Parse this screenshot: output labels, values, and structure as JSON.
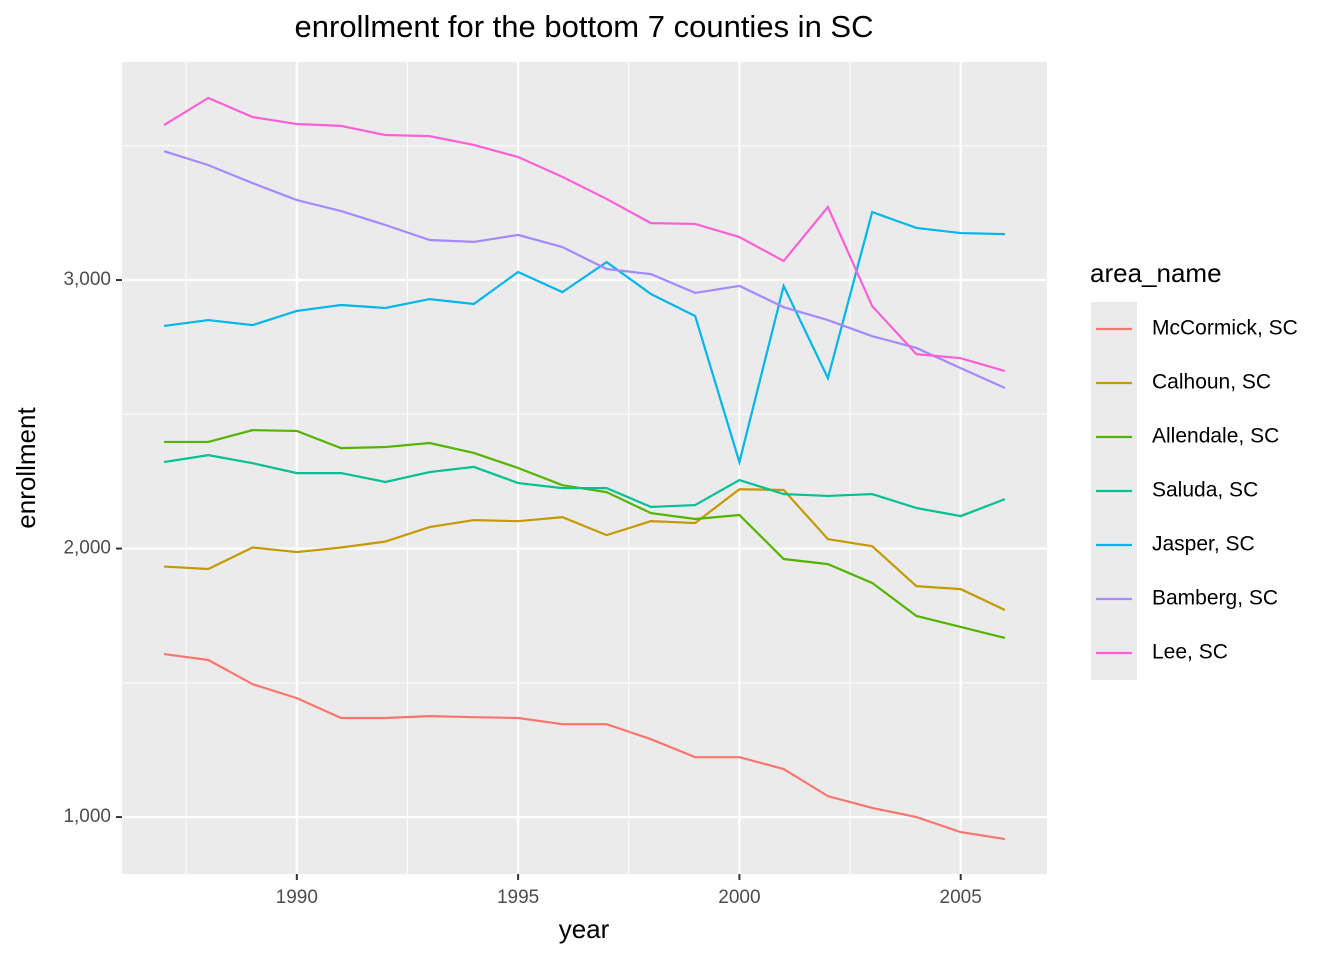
{
  "chart_data": {
    "type": "line",
    "title": "enrollment for the bottom 7 counties in SC",
    "x_label": "year",
    "y_label": "enrollment",
    "legend_title": "area_name",
    "legend_position": "right",
    "grid": true,
    "x": [
      1987,
      1988,
      1989,
      1990,
      1991,
      1992,
      1993,
      1994,
      1995,
      1996,
      1997,
      1998,
      1999,
      2000,
      2001,
      2002,
      2003,
      2004,
      2005,
      2006
    ],
    "xlim": [
      1986.05,
      2006.95
    ],
    "xticks": [
      1990,
      1995,
      2000,
      2005
    ],
    "ylim": [
      788,
      3812
    ],
    "yticks": [
      {
        "value": 1000,
        "label": "1,000"
      },
      {
        "value": 2000,
        "label": "2,000"
      },
      {
        "value": 3000,
        "label": "3,000"
      }
    ],
    "series": [
      {
        "name": "McCormick, SC",
        "color": "#F8766D",
        "values": [
          1607,
          1585,
          1495,
          1443,
          1369,
          1369,
          1376,
          1372,
          1369,
          1346,
          1346,
          1290,
          1223,
          1223,
          1179,
          1078,
          1034,
          1000,
          944,
          918
        ]
      },
      {
        "name": "Calhoun, SC",
        "color": "#C49A00",
        "values": [
          1933,
          1924,
          2004,
          1987,
          2004,
          2026,
          2080,
          2106,
          2102,
          2117,
          2050,
          2102,
          2095,
          2221,
          2218,
          2035,
          2009,
          1860,
          1849,
          1771
        ]
      },
      {
        "name": "Allendale, SC",
        "color": "#53B400",
        "values": [
          2397,
          2397,
          2441,
          2438,
          2374,
          2378,
          2393,
          2356,
          2300,
          2236,
          2210,
          2132,
          2110,
          2125,
          1961,
          1942,
          1872,
          1749,
          1708,
          1667
        ]
      },
      {
        "name": "Saluda, SC",
        "color": "#00C094",
        "values": [
          2322,
          2348,
          2318,
          2281,
          2281,
          2248,
          2285,
          2304,
          2244,
          2225,
          2225,
          2155,
          2162,
          2255,
          2203,
          2196,
          2203,
          2151,
          2121,
          2184
        ]
      },
      {
        "name": "Jasper, SC",
        "color": "#00B6EB",
        "values": [
          2829,
          2851,
          2832,
          2885,
          2907,
          2896,
          2929,
          2911,
          3030,
          2955,
          3067,
          2948,
          2866,
          2322,
          2978,
          2635,
          3253,
          3194,
          3175,
          3171
        ]
      },
      {
        "name": "Bamberg, SC",
        "color": "#A58AFF",
        "values": [
          3480,
          3428,
          3361,
          3298,
          3257,
          3205,
          3149,
          3142,
          3168,
          3123,
          3041,
          3022,
          2952,
          2978,
          2899,
          2851,
          2791,
          2747,
          2672,
          2598
        ]
      },
      {
        "name": "Lee, SC",
        "color": "#FB61D7",
        "values": [
          3577,
          3678,
          3607,
          3581,
          3574,
          3540,
          3536,
          3503,
          3458,
          3384,
          3302,
          3212,
          3209,
          3160,
          3071,
          3272,
          2903,
          2724,
          2709,
          2661
        ]
      }
    ]
  }
}
